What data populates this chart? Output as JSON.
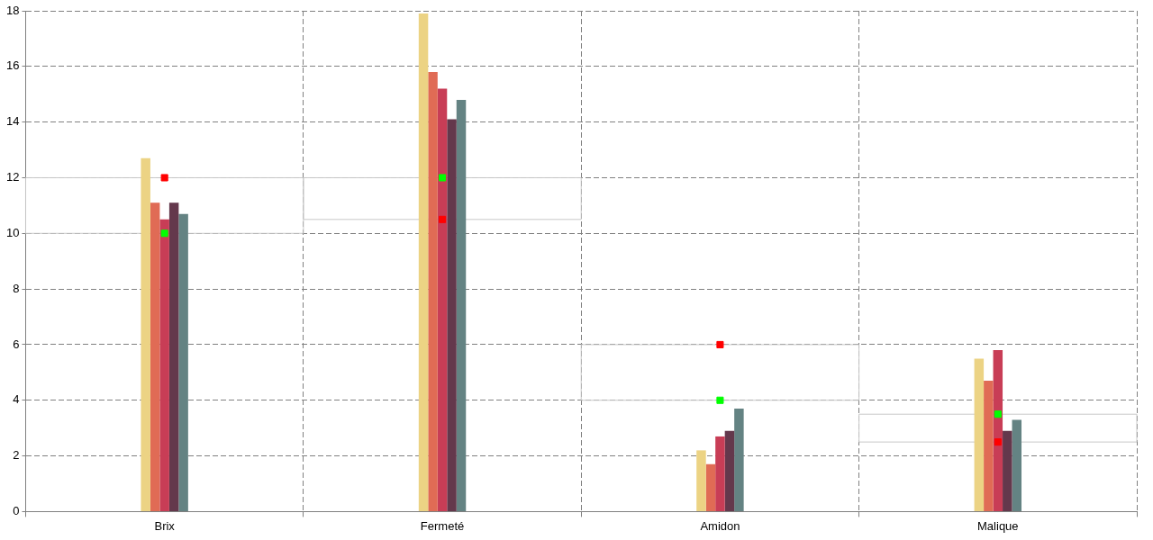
{
  "chart_data": {
    "type": "bar",
    "categories": [
      "Brix",
      "Fermeté",
      "Amidon",
      "Malique"
    ],
    "series": [
      {
        "color": "#ecd384",
        "values": [
          12.7,
          17.9,
          2.2,
          5.5
        ]
      },
      {
        "color": "#e06b55",
        "values": [
          11.1,
          15.8,
          1.7,
          4.7
        ]
      },
      {
        "color": "#c83d56",
        "values": [
          10.5,
          15.2,
          2.7,
          5.8
        ]
      },
      {
        "color": "#64384c",
        "values": [
          11.1,
          14.1,
          2.9,
          2.9
        ]
      },
      {
        "color": "#648383",
        "values": [
          10.7,
          14.8,
          3.7,
          3.3
        ]
      },
      {
        "type": "scatter",
        "color": "#ff0000",
        "x": [
          "Brix",
          "Fermeté",
          "Amidon",
          "Malique"
        ],
        "values": [
          12,
          10.5,
          6,
          2.5
        ]
      },
      {
        "type": "scatter",
        "color": "#00ff00",
        "x": [
          "Brix",
          "Fermeté",
          "Amidon",
          "Malique"
        ],
        "values": [
          10,
          12,
          4,
          3.5
        ]
      }
    ],
    "ylim": [
      0,
      18
    ],
    "yticks": [
      0,
      2,
      4,
      6,
      8,
      10,
      12,
      14,
      16,
      18
    ],
    "grid": true,
    "legend": false,
    "marker": "square"
  }
}
